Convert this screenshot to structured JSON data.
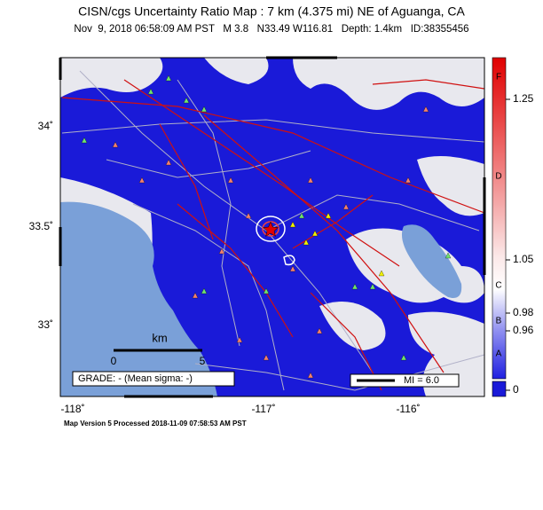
{
  "header": {
    "title": "CISN/cgs Uncertainty Ratio Map : 7 km (4.375 mi) NE of Aguanga, CA",
    "subtitle": "Nov  9, 2018 06:58:09 AM PST   M 3.8   N33.49 W116.81   Depth: 1.4km   ID:38355456"
  },
  "map": {
    "lat_labels": [
      "34˚",
      "33.5˚",
      "33˚"
    ],
    "lon_labels": [
      "-118˚",
      "-117˚",
      "-116˚"
    ],
    "scale_bar": {
      "unit": "km",
      "start": "0",
      "end": "5"
    },
    "grade": "GRADE: - (Mean sigma: -)",
    "mi_legend": "MI = 6.0"
  },
  "colorbar": {
    "grades": [
      "F",
      "D",
      "C",
      "B",
      "A"
    ],
    "values": [
      "1.25",
      "1.05",
      "0.98",
      "0.96",
      "0"
    ]
  },
  "footer": "Map Version 5 Processed 2018-11-09 07:58:53 AM PST"
}
